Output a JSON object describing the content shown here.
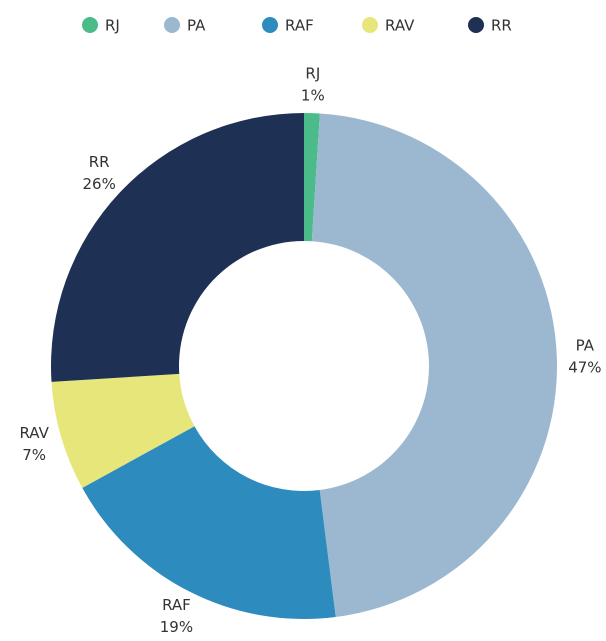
{
  "chart_data": {
    "type": "donut",
    "categories": [
      "RJ",
      "PA",
      "RAF",
      "RAV",
      "RR"
    ],
    "values": [
      1,
      47,
      19,
      7,
      26
    ],
    "value_labels": [
      "1%",
      "47%",
      "19%",
      "7%",
      "26%"
    ],
    "colors": [
      "#4cbb8a",
      "#9bb8d0",
      "#2e8bbd",
      "#e6e67a",
      "#1e3054"
    ],
    "legend": "top"
  }
}
